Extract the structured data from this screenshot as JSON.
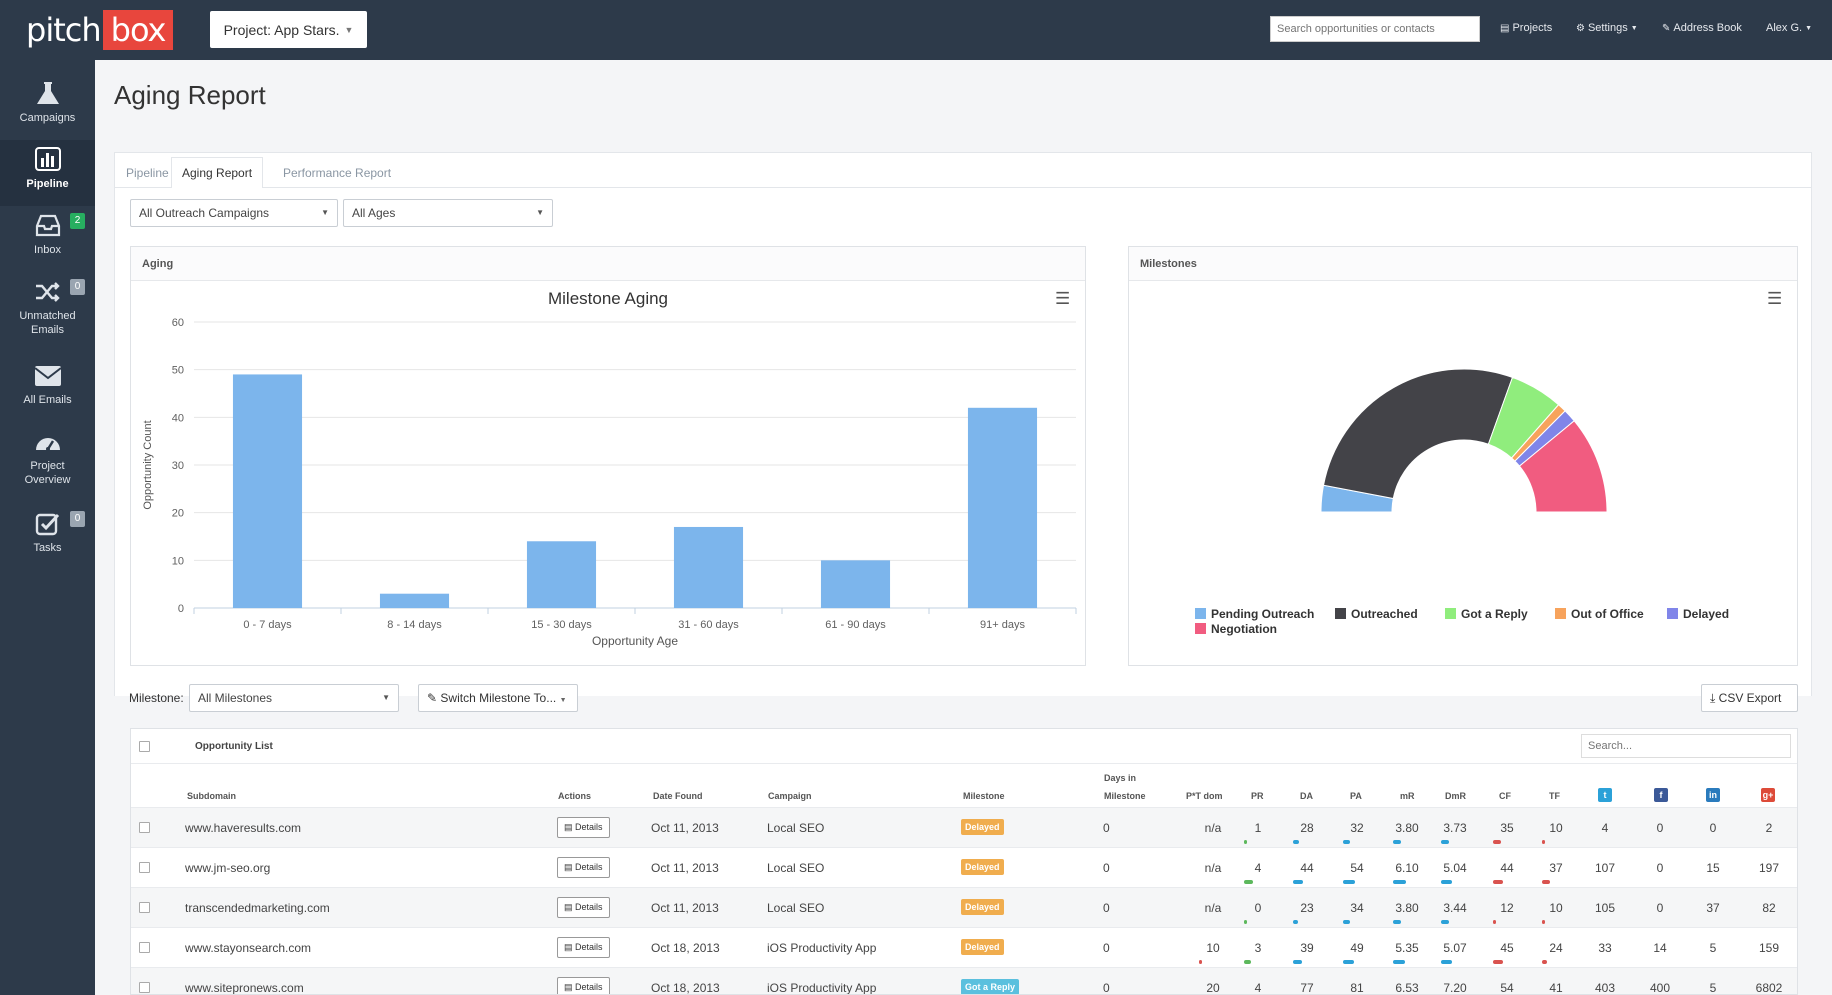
{
  "app": {
    "logo_left": "pitch",
    "logo_right": "box",
    "project_button": "Project: App Stars.",
    "search_placeholder": "Search opportunities or contacts",
    "nav": {
      "projects": "Projects",
      "settings": "Settings",
      "address_book": "Address Book",
      "user": "Alex G."
    }
  },
  "sidebar": {
    "items": [
      {
        "label": "Campaigns",
        "icon": "flask-icon"
      },
      {
        "label": "Pipeline",
        "icon": "bar-chart-icon"
      },
      {
        "label": "Inbox",
        "icon": "inbox-icon",
        "badge": "2"
      },
      {
        "label": "Unmatched Emails",
        "icon": "shuffle-icon",
        "badge": "0"
      },
      {
        "label": "All Emails",
        "icon": "envelope-icon"
      },
      {
        "label": "Project Overview",
        "icon": "dashboard-icon"
      },
      {
        "label": "Tasks",
        "icon": "checkbox-icon",
        "badge": "0"
      }
    ]
  },
  "page": {
    "title": "Aging Report",
    "tabs": [
      "Pipeline",
      "Aging Report",
      "Performance Report"
    ],
    "filters": {
      "campaign": "All Outreach Campaigns",
      "ages": "All Ages"
    }
  },
  "aging_panel": {
    "title": "Aging"
  },
  "milestones_panel": {
    "title": "Milestones"
  },
  "chart_data": [
    {
      "type": "bar",
      "title": "Milestone Aging",
      "xlabel": "Opportunity Age",
      "ylabel": "Opportunity Count",
      "categories": [
        "0 - 7 days",
        "8 - 14 days",
        "15 - 30 days",
        "31 - 60 days",
        "61 - 90 days",
        "91+ days"
      ],
      "values": [
        49,
        3,
        14,
        17,
        10,
        42
      ],
      "ylim": [
        0,
        60
      ],
      "yticks": [
        0,
        10,
        20,
        30,
        40,
        50,
        60
      ],
      "color": "#7cb5ec"
    },
    {
      "type": "pie",
      "subtype": "semi-donut",
      "labels": [
        "Pending Outreach",
        "Outreached",
        "Got a Reply",
        "Out of Office",
        "Delayed",
        "Negotiation"
      ],
      "values": [
        6,
        55,
        12,
        2,
        3,
        22
      ],
      "colors": [
        "#7cb5ec",
        "#434348",
        "#90ed7d",
        "#f7a35c",
        "#8085e9",
        "#f15c80"
      ],
      "legend": "bottom"
    }
  ],
  "milestone_filter": {
    "label": "Milestone:",
    "value": "All Milestones",
    "switch_button": "Switch Milestone To...",
    "csv_button": "CSV Export"
  },
  "table": {
    "title": "Opportunity List",
    "search_placeholder": "Search...",
    "headers": {
      "subdomain": "Subdomain",
      "actions": "Actions",
      "date_found": "Date Found",
      "campaign": "Campaign",
      "milestone": "Milestone",
      "days_top": "Days in",
      "days_bottom": "Milestone",
      "ptdom": "P*T dom",
      "pr": "PR",
      "da": "DA",
      "pa": "PA",
      "mr": "mR",
      "dmr": "DmR",
      "cf": "CF",
      "tf": "TF"
    },
    "details_label": "Details",
    "rows": [
      {
        "subdomain": "www.haveresults.com",
        "date": "Oct 11, 2013",
        "campaign": "Local SEO",
        "milestone": "Delayed",
        "mcolor": "#f0ad4e",
        "days": "0",
        "ptdom": "n/a",
        "pr": "1",
        "da": "28",
        "pa": "32",
        "mr": "3.80",
        "dmr": "3.73",
        "cf": "35",
        "tf": "10",
        "tw": "4",
        "fb": "0",
        "li": "0",
        "gp": "2"
      },
      {
        "subdomain": "www.jm-seo.org",
        "date": "Oct 11, 2013",
        "campaign": "Local SEO",
        "milestone": "Delayed",
        "mcolor": "#f0ad4e",
        "days": "0",
        "ptdom": "n/a",
        "pr": "4",
        "da": "44",
        "pa": "54",
        "mr": "6.10",
        "dmr": "5.04",
        "cf": "44",
        "tf": "37",
        "tw": "107",
        "fb": "0",
        "li": "15",
        "gp": "197"
      },
      {
        "subdomain": "transcendedmarketing.com",
        "date": "Oct 11, 2013",
        "campaign": "Local SEO",
        "milestone": "Delayed",
        "mcolor": "#f0ad4e",
        "days": "0",
        "ptdom": "n/a",
        "pr": "0",
        "da": "23",
        "pa": "34",
        "mr": "3.80",
        "dmr": "3.44",
        "cf": "12",
        "tf": "10",
        "tw": "105",
        "fb": "0",
        "li": "37",
        "gp": "82"
      },
      {
        "subdomain": "www.stayonsearch.com",
        "date": "Oct 18, 2013",
        "campaign": "iOS Productivity App",
        "milestone": "Delayed",
        "mcolor": "#f0ad4e",
        "days": "0",
        "ptdom": "10",
        "pr": "3",
        "da": "39",
        "pa": "49",
        "mr": "5.35",
        "dmr": "5.07",
        "cf": "45",
        "tf": "24",
        "tw": "33",
        "fb": "14",
        "li": "5",
        "gp": "159"
      },
      {
        "subdomain": "www.sitepronews.com",
        "date": "Oct 18, 2013",
        "campaign": "iOS Productivity App",
        "milestone": "Got a Reply",
        "mcolor": "#5bc0de",
        "days": "0",
        "ptdom": "20",
        "pr": "4",
        "da": "77",
        "pa": "81",
        "mr": "6.53",
        "dmr": "7.20",
        "cf": "54",
        "tf": "41",
        "tw": "403",
        "fb": "400",
        "li": "5",
        "gp": "6802"
      }
    ]
  }
}
